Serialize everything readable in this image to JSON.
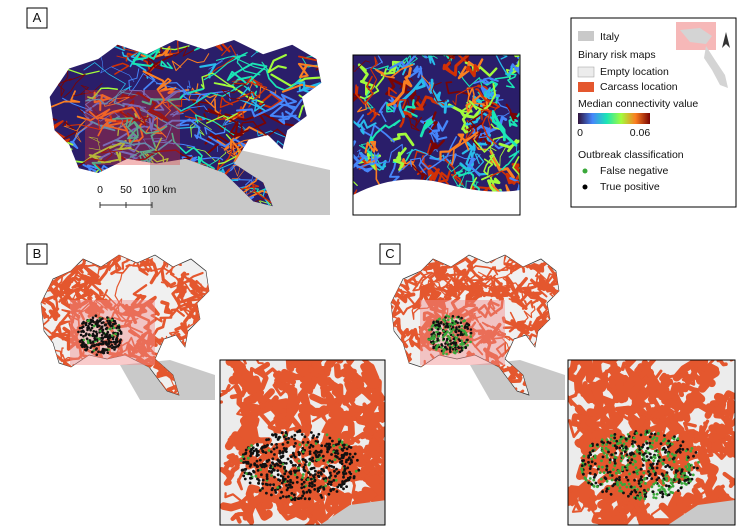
{
  "panels": [
    {
      "label": "A"
    },
    {
      "label": "B"
    },
    {
      "label": "C"
    }
  ],
  "scale_bar": {
    "labels": [
      "0",
      "50",
      "100 km"
    ]
  },
  "legend": {
    "italy": "Italy",
    "binary_title": "Binary risk maps",
    "empty": "Empty location",
    "carcass": "Carcass location",
    "connectivity_title": "Median connectivity value",
    "connectivity_min": "0",
    "connectivity_max": "0.06",
    "outbreak_title": "Outbreak classification",
    "false_negative": "False negative",
    "true_positive": "True positive"
  }
}
